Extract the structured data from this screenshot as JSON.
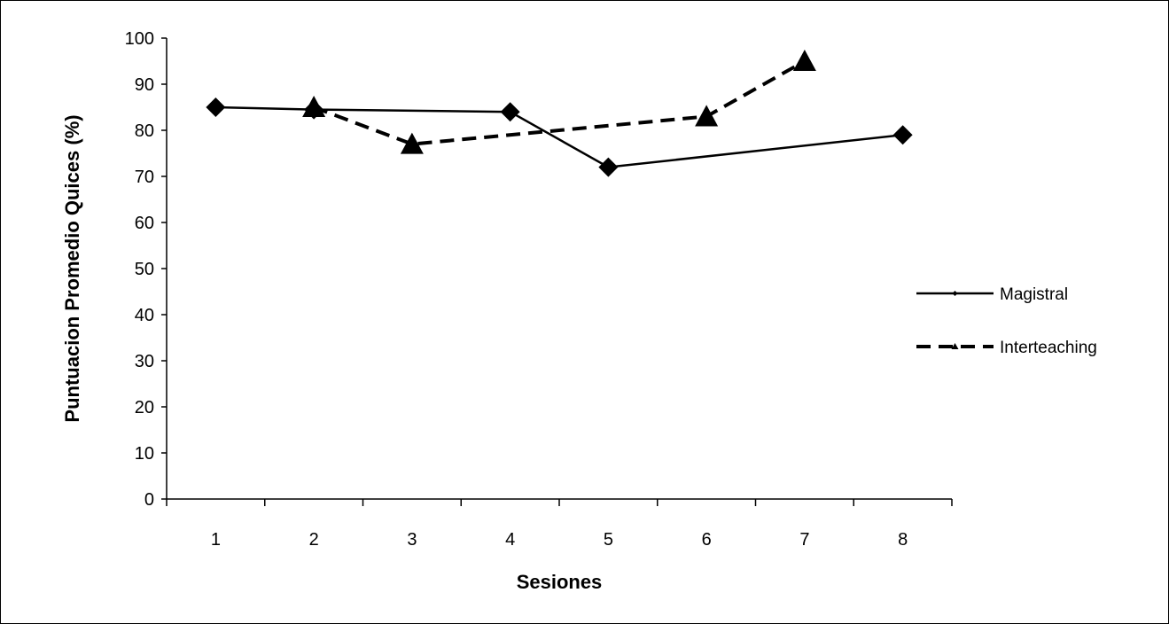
{
  "chart_data": {
    "type": "line",
    "xlabel": "Sesiones",
    "ylabel": "Puntuacion  Promedio Quices (%)",
    "categories": [
      "1",
      "2",
      "3",
      "4",
      "5",
      "6",
      "7",
      "8"
    ],
    "ylim": [
      0,
      100
    ],
    "yticks": [
      0,
      10,
      20,
      30,
      40,
      50,
      60,
      70,
      80,
      90,
      100
    ],
    "grid": false,
    "legend_position": "right",
    "series": [
      {
        "name": "Magistral",
        "x": [
          1,
          2,
          4,
          5,
          8
        ],
        "values": [
          85,
          84.5,
          84,
          72,
          79
        ],
        "line_style": "solid",
        "marker": "diamond",
        "color": "#000000"
      },
      {
        "name": "Interteaching",
        "x": [
          2,
          3,
          6,
          7
        ],
        "values": [
          85,
          77,
          83,
          95
        ],
        "line_style": "dashed",
        "marker": "triangle",
        "color": "#000000"
      }
    ]
  }
}
